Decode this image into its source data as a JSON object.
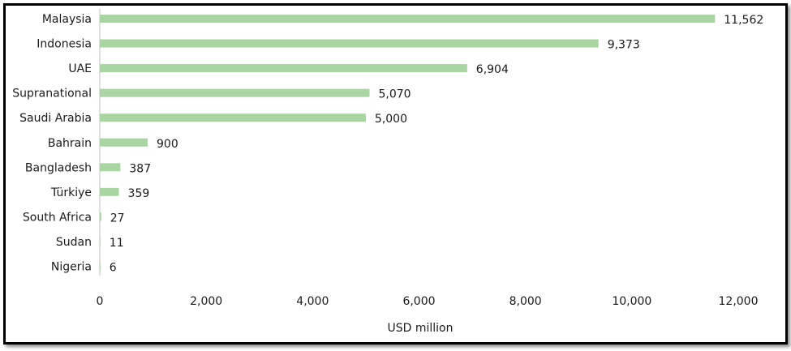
{
  "chart_data": {
    "type": "bar",
    "orientation": "horizontal",
    "categories": [
      "Malaysia",
      "Indonesia",
      "UAE",
      "Supranational",
      "Saudi Arabia",
      "Bahrain",
      "Bangladesh",
      "Türkiye",
      "South Africa",
      "Sudan",
      "Nigeria"
    ],
    "values": [
      11562,
      9373,
      6904,
      5070,
      5000,
      900,
      387,
      359,
      27,
      11,
      6
    ],
    "value_labels": [
      "11,562",
      "9,373",
      "6,904",
      "5,070",
      "5,000",
      "900",
      "387",
      "359",
      "27",
      "11",
      "6"
    ],
    "xlabel": "USD million",
    "ylabel": "",
    "title": "",
    "xlim": [
      0,
      12000
    ],
    "x_ticks": [
      0,
      2000,
      4000,
      6000,
      8000,
      10000,
      12000
    ],
    "x_tick_labels": [
      "0",
      "2,000",
      "4,000",
      "6,000",
      "8,000",
      "10,000",
      "12,000"
    ],
    "grid": false,
    "legend": "none",
    "colors": {
      "bar": "#a8d5a2",
      "text": "#1a1a1a",
      "axis": "#bfbfbf"
    }
  }
}
